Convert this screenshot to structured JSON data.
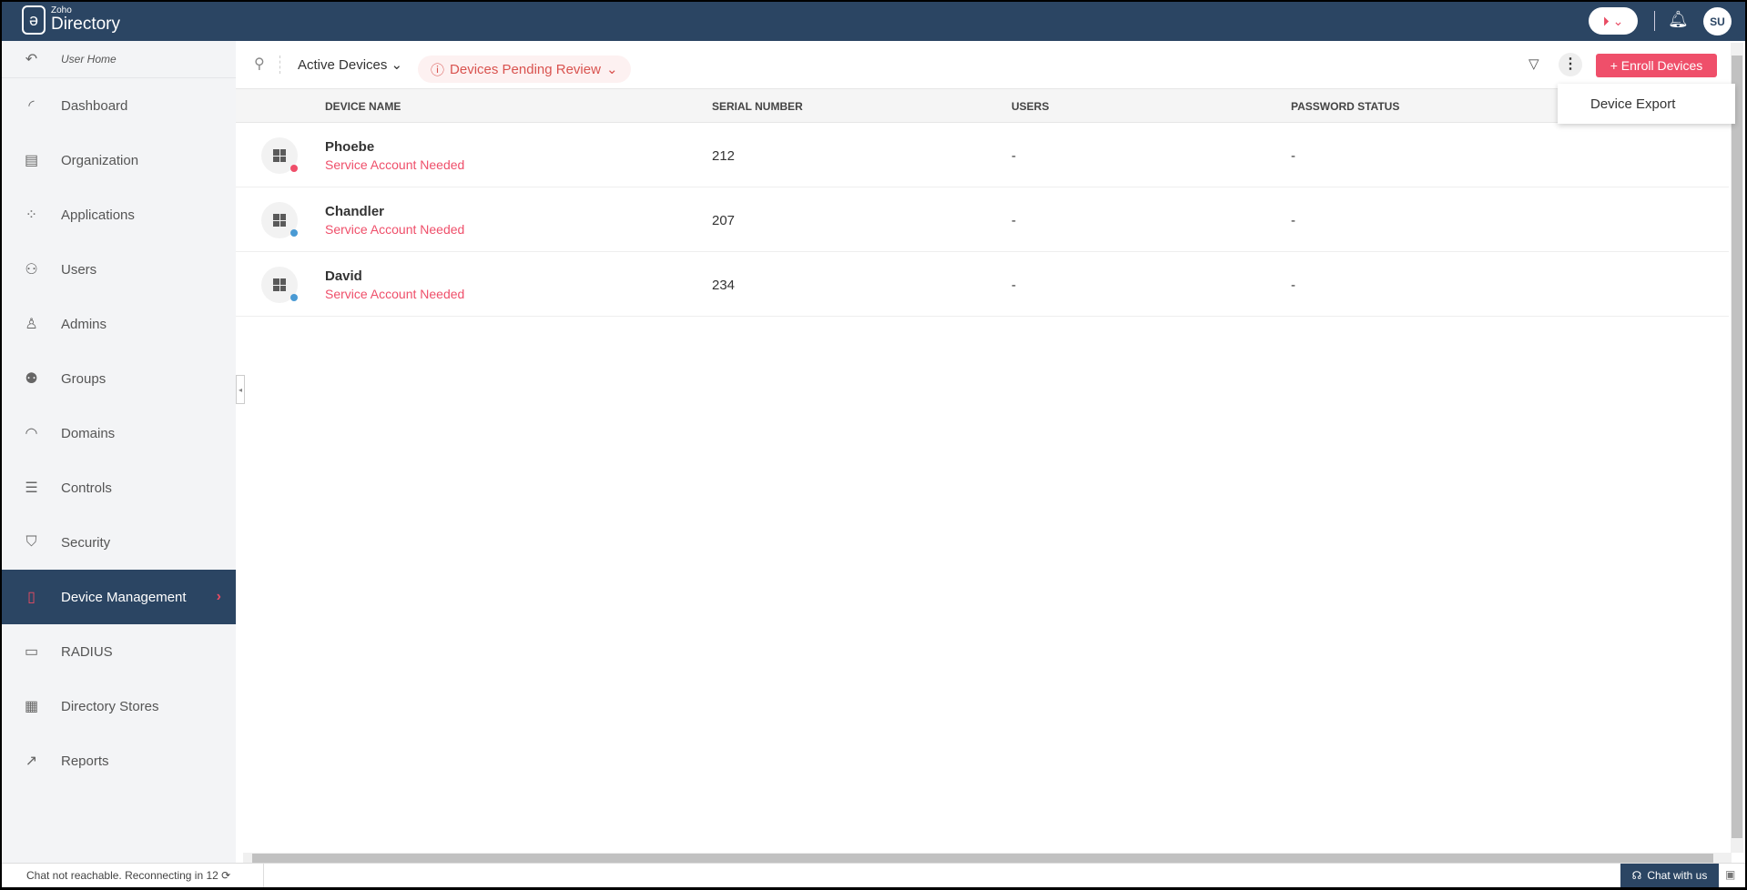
{
  "header": {
    "brand_small": "Zoho",
    "brand": "Directory",
    "avatar": "SU"
  },
  "sidebar": {
    "user_home": "User Home",
    "items": [
      {
        "label": "Dashboard",
        "icon": "◜"
      },
      {
        "label": "Organization",
        "icon": "▤"
      },
      {
        "label": "Applications",
        "icon": "⁘"
      },
      {
        "label": "Users",
        "icon": "⚇"
      },
      {
        "label": "Admins",
        "icon": "♙"
      },
      {
        "label": "Groups",
        "icon": "⚉"
      },
      {
        "label": "Domains",
        "icon": "◠"
      },
      {
        "label": "Controls",
        "icon": "☰"
      },
      {
        "label": "Security",
        "icon": "⛉"
      },
      {
        "label": "Device Management",
        "icon": "▯",
        "active": true
      },
      {
        "label": "RADIUS",
        "icon": "▭"
      },
      {
        "label": "Directory Stores",
        "icon": "▦"
      },
      {
        "label": "Reports",
        "icon": "↗"
      }
    ]
  },
  "toolbar": {
    "view": "Active Devices",
    "pending": "Devices Pending Review",
    "enroll": "+ Enroll Devices",
    "menu_item": "Device Export"
  },
  "table": {
    "columns": [
      "DEVICE NAME",
      "SERIAL NUMBER",
      "USERS",
      "PASSWORD STATUS"
    ],
    "rows": [
      {
        "name": "Phoebe",
        "status": "Service Account Needed",
        "serial": "212",
        "users": "-",
        "password": "-",
        "dot": "#ef4f6a"
      },
      {
        "name": "Chandler",
        "status": "Service Account Needed",
        "serial": "207",
        "users": "-",
        "password": "-",
        "dot": "#4a9ad4"
      },
      {
        "name": "David",
        "status": "Service Account Needed",
        "serial": "234",
        "users": "-",
        "password": "-",
        "dot": "#4a9ad4"
      }
    ]
  },
  "footer": {
    "chat_status": "Chat not reachable. Reconnecting in 12",
    "chat_button": "Chat with us"
  },
  "colors": {
    "primary": "#2b4563",
    "accent": "#ef4f6a"
  }
}
